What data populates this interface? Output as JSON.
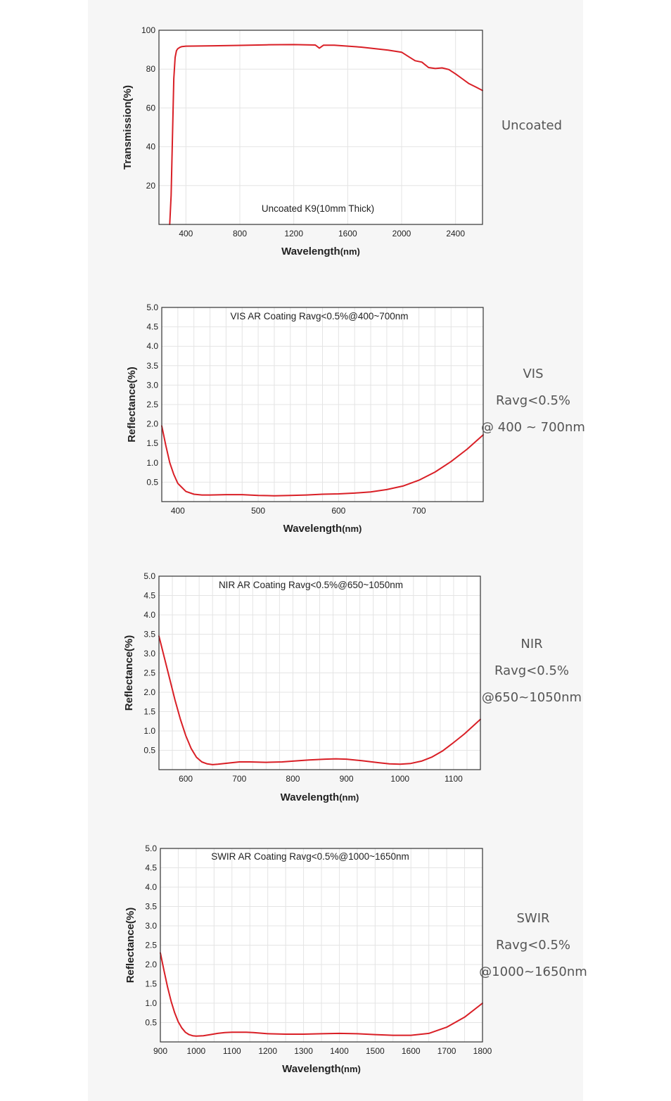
{
  "colors": {
    "line": "#d91f26",
    "grid": "#e4e4e4",
    "frame": "#333333",
    "panel": "#f6f6f6"
  },
  "chart_data": [
    {
      "type": "line",
      "title": "",
      "annotation": "Uncoated K9(10mm Thick)",
      "xlabel": "Wavelength",
      "xlabel_unit": "(nm)",
      "ylabel": "Transmission(%)",
      "xlim": [
        200,
        2600
      ],
      "ylim": [
        0,
        100
      ],
      "xticks": [
        400,
        800,
        1200,
        1600,
        2000,
        2400
      ],
      "yticks": [
        20,
        40,
        60,
        80,
        100
      ],
      "grid": true,
      "side_labels": [
        "Uncoated"
      ],
      "series": [
        {
          "x": [
            280,
            290,
            300,
            310,
            320,
            330,
            340,
            355,
            370,
            400,
            600,
            800,
            1000,
            1200,
            1360,
            1390,
            1420,
            1500,
            1700,
            1900,
            2000,
            2050,
            2100,
            2150,
            2200,
            2250,
            2300,
            2350,
            2400,
            2450,
            2500,
            2550,
            2600
          ],
          "y": [
            0,
            15,
            45,
            75,
            86,
            89.5,
            90.5,
            91.2,
            91.6,
            91.8,
            92,
            92.2,
            92.5,
            92.6,
            92.4,
            90.8,
            92.3,
            92.3,
            91.3,
            89.8,
            88.7,
            86.5,
            84.3,
            83.6,
            80.8,
            80.3,
            80.6,
            79.8,
            77.5,
            75,
            72.5,
            70.8,
            69
          ]
        }
      ]
    },
    {
      "type": "line",
      "title": "VIS AR Coating Ravg<0.5%@400~700nm",
      "xlabel": "Wavelength",
      "xlabel_unit": "(nm)",
      "ylabel": "Reflectance(%)",
      "xlim": [
        380,
        780
      ],
      "ylim": [
        0,
        5
      ],
      "xticks": [
        400,
        500,
        600,
        700
      ],
      "yticks": [
        "0.5",
        "1.0",
        "1.5",
        "2.0",
        "2.5",
        "3.0",
        "3.5",
        "4.0",
        "4.5",
        "5.0"
      ],
      "grid": true,
      "side_labels": [
        "VIS",
        "Ravg<0.5%",
        "@ 400 ~ 700nm"
      ],
      "series": [
        {
          "x": [
            380,
            385,
            390,
            395,
            400,
            410,
            420,
            430,
            440,
            460,
            480,
            500,
            520,
            540,
            560,
            580,
            600,
            620,
            640,
            660,
            680,
            700,
            720,
            740,
            760,
            780
          ],
          "y": [
            1.95,
            1.45,
            1.0,
            0.7,
            0.47,
            0.26,
            0.19,
            0.17,
            0.17,
            0.18,
            0.18,
            0.16,
            0.15,
            0.16,
            0.17,
            0.19,
            0.2,
            0.22,
            0.25,
            0.31,
            0.4,
            0.55,
            0.76,
            1.03,
            1.35,
            1.72
          ]
        }
      ]
    },
    {
      "type": "line",
      "title": "NIR AR Coating Ravg<0.5%@650~1050nm",
      "xlabel": "Wavelength",
      "xlabel_unit": "(nm)",
      "ylabel": "Reflectance(%)",
      "xlim": [
        550,
        1150
      ],
      "ylim": [
        0,
        5
      ],
      "xticks": [
        600,
        700,
        800,
        900,
        1000,
        1100
      ],
      "yticks": [
        "0.5",
        "1.0",
        "1.5",
        "2.0",
        "2.5",
        "3.0",
        "3.5",
        "4.0",
        "4.5",
        "5.0"
      ],
      "grid": true,
      "side_labels": [
        "NIR",
        "Ravg<0.5%",
        "@650~1050nm"
      ],
      "series": [
        {
          "x": [
            550,
            560,
            570,
            580,
            590,
            600,
            610,
            620,
            630,
            640,
            650,
            660,
            680,
            700,
            720,
            750,
            780,
            800,
            830,
            860,
            880,
            900,
            930,
            960,
            980,
            1000,
            1020,
            1040,
            1060,
            1080,
            1100,
            1120,
            1150
          ],
          "y": [
            3.45,
            2.9,
            2.35,
            1.8,
            1.3,
            0.88,
            0.55,
            0.32,
            0.2,
            0.15,
            0.13,
            0.14,
            0.17,
            0.2,
            0.2,
            0.19,
            0.2,
            0.22,
            0.25,
            0.27,
            0.28,
            0.27,
            0.23,
            0.18,
            0.15,
            0.14,
            0.16,
            0.22,
            0.33,
            0.49,
            0.7,
            0.92,
            1.3
          ]
        }
      ]
    },
    {
      "type": "line",
      "title": "SWIR AR Coating Ravg<0.5%@1000~1650nm",
      "xlabel": "Wavelength",
      "xlabel_unit": "(nm)",
      "ylabel": "Reflectance(%)",
      "xlim": [
        900,
        1800
      ],
      "ylim": [
        0,
        5
      ],
      "xticks": [
        900,
        1000,
        1100,
        1200,
        1300,
        1400,
        1500,
        1600,
        1700,
        1800
      ],
      "yticks": [
        "0.5",
        "1.0",
        "1.5",
        "2.0",
        "2.5",
        "3.0",
        "3.5",
        "4.0",
        "4.5",
        "5.0"
      ],
      "grid": true,
      "side_labels": [
        "SWIR",
        "Ravg<0.5%",
        "@1000~1650nm"
      ],
      "series": [
        {
          "x": [
            900,
            910,
            920,
            930,
            940,
            950,
            960,
            970,
            980,
            990,
            1000,
            1020,
            1040,
            1060,
            1080,
            1100,
            1120,
            1140,
            1160,
            1200,
            1250,
            1300,
            1350,
            1400,
            1450,
            1500,
            1550,
            1600,
            1650,
            1700,
            1750,
            1800
          ],
          "y": [
            2.3,
            1.85,
            1.42,
            1.05,
            0.75,
            0.52,
            0.36,
            0.25,
            0.19,
            0.16,
            0.15,
            0.16,
            0.19,
            0.22,
            0.24,
            0.25,
            0.25,
            0.25,
            0.24,
            0.21,
            0.2,
            0.2,
            0.21,
            0.22,
            0.21,
            0.19,
            0.17,
            0.17,
            0.22,
            0.38,
            0.64,
            1.0
          ]
        }
      ]
    }
  ]
}
